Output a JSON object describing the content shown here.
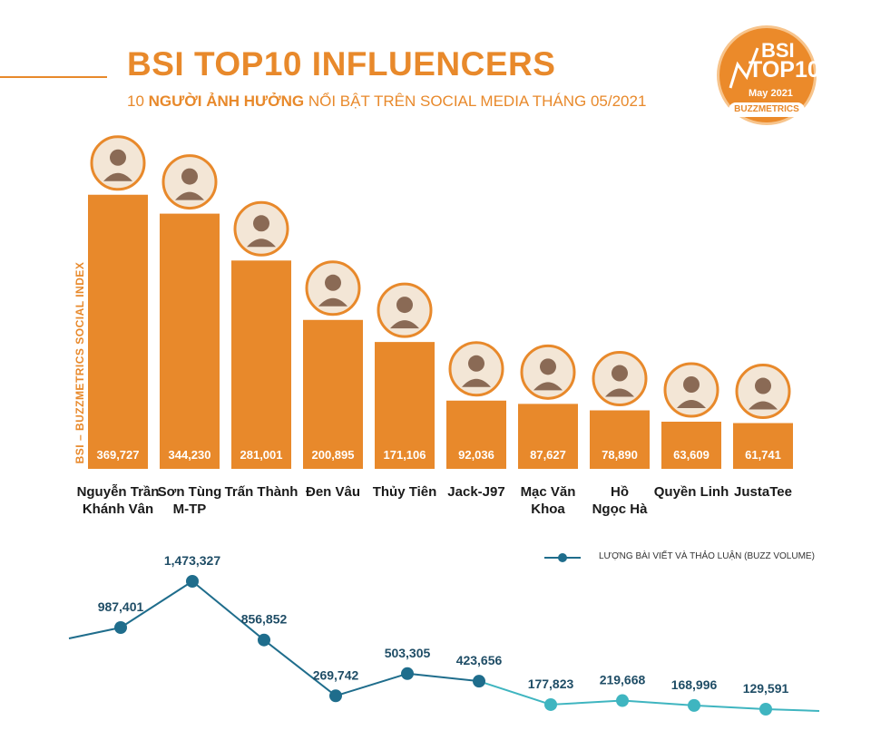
{
  "header": {
    "title": "BSI TOP10 INFLUENCERS",
    "subtitle_prefix": "10 ",
    "subtitle_bold": "NGƯỜI ẢNH HƯỞNG",
    "subtitle_rest": " NỔI BẬT TRÊN SOCIAL MEDIA THÁNG 05/2021"
  },
  "badge": {
    "line1": "BSI",
    "line2": "TOP10",
    "line3": "May 2021",
    "brand": "BUZZMETRICS"
  },
  "colors": {
    "bar": "#e8892b",
    "line": "#1f6d8c",
    "line_light": "#3fb5c0",
    "accent": "#e8892b"
  },
  "chart_data": [
    {
      "type": "bar",
      "ylabel": "BSI – BUZZMETRICS SOCIAL INDEX",
      "categories": [
        [
          "Nguyễn Trần",
          "Khánh Vân"
        ],
        [
          "Sơn Tùng",
          "M-TP"
        ],
        [
          "Trấn Thành"
        ],
        [
          "Đen Vâu"
        ],
        [
          "Thủy Tiên"
        ],
        [
          "Jack-J97"
        ],
        [
          "Mạc Văn",
          "Khoa"
        ],
        [
          "Hồ",
          "Ngọc Hà"
        ],
        [
          "Quyền Linh"
        ],
        [
          "JustaTee"
        ]
      ],
      "values": [
        369727,
        344230,
        281001,
        200895,
        171106,
        92036,
        87627,
        78890,
        63609,
        61741
      ],
      "value_labels": [
        "369,727",
        "344,230",
        "281,001",
        "200,895",
        "171,106",
        "92,036",
        "87,627",
        "78,890",
        "63,609",
        "61,741"
      ],
      "ylim": [
        0,
        400000
      ]
    },
    {
      "type": "line",
      "series_name": "LƯỢNG BÀI VIẾT VÀ THẢO LUẬN (BUZZ VOLUME)",
      "values": [
        987401,
        1473327,
        856852,
        269742,
        503305,
        423656,
        177823,
        219668,
        168996,
        129591
      ],
      "value_labels": [
        "987,401",
        "1,473,327",
        "856,852",
        "269,742",
        "503,305",
        "423,656",
        "177,823",
        "219,668",
        "168,996",
        "129,591"
      ]
    }
  ]
}
